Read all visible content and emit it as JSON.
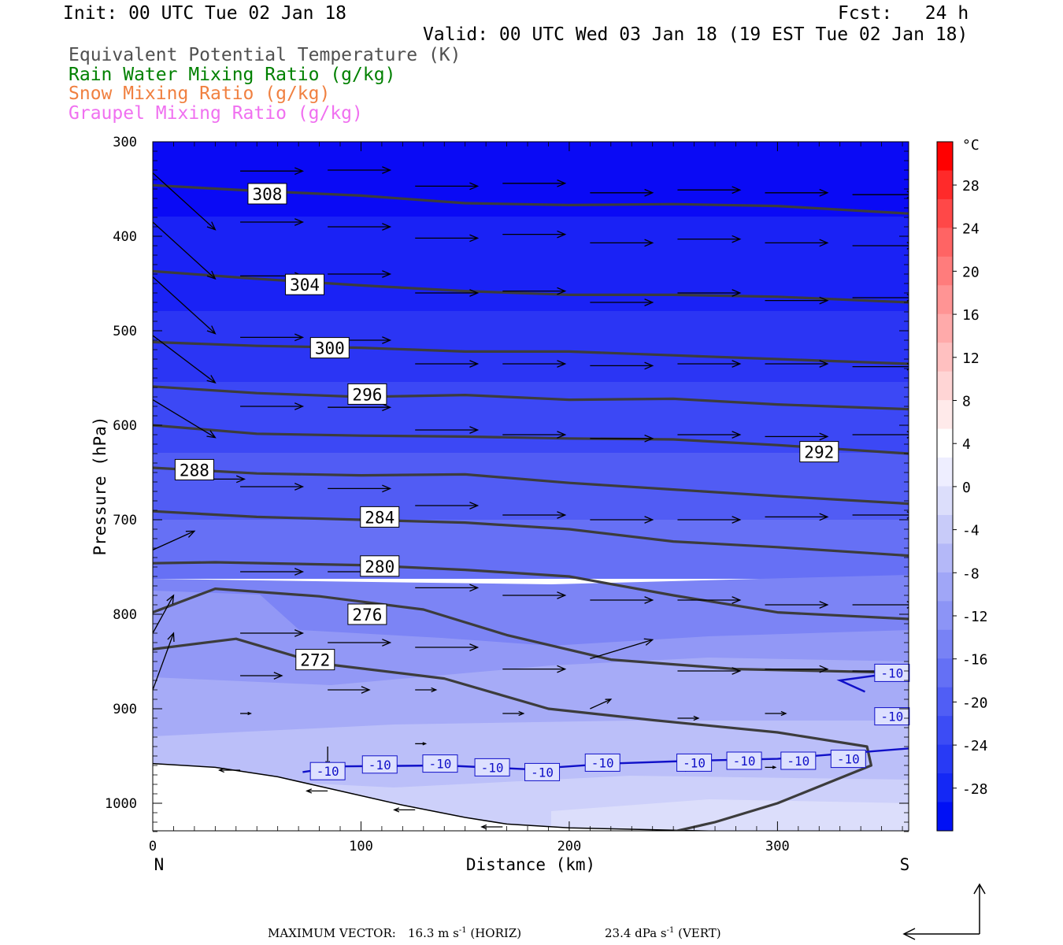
{
  "header": {
    "init": "Init: 00 UTC Tue 02 Jan 18",
    "fcst": "Fcst:   24 h",
    "valid": "Valid: 00 UTC Wed 03 Jan 18 (19 EST Tue 02 Jan 18)"
  },
  "legend": [
    {
      "text": "Equivalent Potential Temperature (K)",
      "color": "#505050"
    },
    {
      "text": "Rain Water Mixing Ratio (g/kg)",
      "color": "#008000"
    },
    {
      "text": "Snow Mixing Ratio (g/kg)",
      "color": "#f08040"
    },
    {
      "text": "Graupel Mixing Ratio (g/kg)",
      "color": "#f070f0"
    }
  ],
  "footer": {
    "label": "MAXIMUM VECTOR:",
    "horiz_value": "16.3 m s",
    "horiz_exp": "-1",
    "horiz_unit": " (HORIZ)",
    "vert_value": "23.4 dPa s",
    "vert_exp": "-1",
    "vert_unit": " (VERT)"
  },
  "colorbar": {
    "unit": "°C",
    "labels": [
      "28",
      "24",
      "20",
      "16",
      "12",
      "8",
      "4",
      "0",
      "-4",
      "-8",
      "-12",
      "-16",
      "-20",
      "-24",
      "-28"
    ]
  },
  "chart_data": {
    "type": "cross-section",
    "xlabel": "Distance (km)",
    "ylabel": "Pressure (hPa)",
    "x_range": [
      0,
      363
    ],
    "y_range": [
      300,
      1030
    ],
    "y_log": false,
    "x_ticks": [
      "0",
      "100",
      "200",
      "300"
    ],
    "x_tick_values": [
      0,
      100,
      200,
      300
    ],
    "y_ticks": [
      "300",
      "400",
      "500",
      "600",
      "700",
      "800",
      "900",
      "1000"
    ],
    "y_tick_values": [
      300,
      400,
      500,
      600,
      700,
      800,
      900,
      1000
    ],
    "x_end_labels": {
      "left": "N",
      "right": "S"
    },
    "theta_e_contours": [
      {
        "label": "308",
        "points": [
          [
            0,
            346
          ],
          [
            50,
            352
          ],
          [
            100,
            357
          ],
          [
            150,
            365
          ],
          [
            200,
            367
          ],
          [
            250,
            366
          ],
          [
            300,
            368
          ],
          [
            363,
            376
          ]
        ],
        "label_at": [
          55,
          355
        ]
      },
      {
        "label": "304",
        "points": [
          [
            0,
            437
          ],
          [
            50,
            445
          ],
          [
            100,
            452
          ],
          [
            150,
            458
          ],
          [
            200,
            462
          ],
          [
            250,
            462
          ],
          [
            300,
            464
          ],
          [
            363,
            470
          ]
        ],
        "label_at": [
          73,
          451
        ]
      },
      {
        "label": "300",
        "points": [
          [
            0,
            512
          ],
          [
            50,
            516
          ],
          [
            100,
            518
          ],
          [
            150,
            522
          ],
          [
            200,
            522
          ],
          [
            250,
            526
          ],
          [
            300,
            530
          ],
          [
            363,
            535
          ]
        ],
        "label_at": [
          85,
          518
        ]
      },
      {
        "label": "296",
        "points": [
          [
            0,
            559
          ],
          [
            50,
            566
          ],
          [
            100,
            570
          ],
          [
            150,
            568
          ],
          [
            200,
            573
          ],
          [
            250,
            572
          ],
          [
            300,
            578
          ],
          [
            363,
            583
          ]
        ],
        "label_at": [
          103,
          567
        ]
      },
      {
        "label": "292",
        "points": [
          [
            0,
            600
          ],
          [
            50,
            609
          ],
          [
            100,
            611
          ],
          [
            150,
            612
          ],
          [
            200,
            614
          ],
          [
            250,
            615
          ],
          [
            300,
            621
          ],
          [
            363,
            630
          ]
        ],
        "label_at": [
          320,
          628
        ]
      },
      {
        "label": "288",
        "points": [
          [
            0,
            645
          ],
          [
            50,
            651
          ],
          [
            100,
            653
          ],
          [
            150,
            652
          ],
          [
            200,
            661
          ],
          [
            250,
            668
          ],
          [
            300,
            675
          ],
          [
            363,
            683
          ]
        ],
        "label_at": [
          20,
          647
        ]
      },
      {
        "label": "284",
        "points": [
          [
            0,
            691
          ],
          [
            50,
            697
          ],
          [
            100,
            700
          ],
          [
            150,
            703
          ],
          [
            200,
            710
          ],
          [
            250,
            723
          ],
          [
            300,
            729
          ],
          [
            363,
            738
          ]
        ],
        "label_at": [
          109,
          697
        ]
      },
      {
        "label": "280",
        "points": [
          [
            0,
            746
          ],
          [
            30,
            745
          ],
          [
            100,
            748
          ],
          [
            150,
            753
          ],
          [
            200,
            760
          ],
          [
            250,
            780
          ],
          [
            300,
            798
          ],
          [
            363,
            805
          ]
        ],
        "label_at": [
          109,
          749
        ]
      },
      {
        "label": "276",
        "points": [
          [
            0,
            798
          ],
          [
            30,
            773
          ],
          [
            80,
            781
          ],
          [
            130,
            795
          ],
          [
            170,
            822
          ],
          [
            220,
            848
          ],
          [
            280,
            858
          ],
          [
            363,
            862
          ]
        ],
        "label_at": [
          103,
          800
        ]
      },
      {
        "label": "272",
        "points": [
          [
            0,
            837
          ],
          [
            40,
            826
          ],
          [
            80,
            852
          ],
          [
            140,
            868
          ],
          [
            190,
            900
          ],
          [
            240,
            912
          ],
          [
            300,
            925
          ],
          [
            343,
            940
          ],
          [
            345,
            960
          ],
          [
            300,
            1000
          ],
          [
            270,
            1020
          ],
          [
            250,
            1030
          ]
        ],
        "label_at": [
          78,
          848
        ]
      }
    ],
    "temp_contours": [
      {
        "label": "-10",
        "points": [
          [
            72,
            967
          ],
          [
            90,
            961
          ],
          [
            140,
            960
          ],
          [
            180,
            964
          ],
          [
            220,
            958
          ],
          [
            260,
            955
          ],
          [
            300,
            953
          ],
          [
            363,
            942
          ]
        ],
        "label_at": [
          [
            84,
            966
          ],
          [
            109,
            959
          ],
          [
            138,
            958
          ],
          [
            163,
            962
          ],
          [
            187,
            967
          ],
          [
            216,
            957
          ],
          [
            260,
            957
          ],
          [
            284,
            955
          ],
          [
            310,
            955
          ],
          [
            334,
            953
          ]
        ]
      },
      {
        "label": "-10",
        "points": [
          [
            342,
            882
          ],
          [
            330,
            870
          ],
          [
            363,
            860
          ]
        ],
        "label_at": [
          [
            355,
            862
          ],
          [
            355,
            908
          ]
        ]
      }
    ],
    "wind_vectors": [
      {
        "x": 0,
        "p": 333,
        "u": 30,
        "w": 60
      },
      {
        "x": 42,
        "p": 331,
        "u": 30,
        "w": 0
      },
      {
        "x": 84,
        "p": 330,
        "u": 30,
        "w": 0
      },
      {
        "x": 126,
        "p": 347,
        "u": 30,
        "w": 0
      },
      {
        "x": 168,
        "p": 344,
        "u": 30,
        "w": 0
      },
      {
        "x": 210,
        "p": 354,
        "u": 30,
        "w": 0
      },
      {
        "x": 252,
        "p": 351,
        "u": 30,
        "w": 0
      },
      {
        "x": 294,
        "p": 354,
        "u": 30,
        "w": 0
      },
      {
        "x": 336,
        "p": 356,
        "u": 30,
        "w": 0
      },
      {
        "x": 0,
        "p": 385,
        "u": 30,
        "w": 60
      },
      {
        "x": 42,
        "p": 385,
        "u": 30,
        "w": 0
      },
      {
        "x": 84,
        "p": 390,
        "u": 30,
        "w": 0
      },
      {
        "x": 126,
        "p": 402,
        "u": 30,
        "w": 0
      },
      {
        "x": 168,
        "p": 398,
        "u": 30,
        "w": 0
      },
      {
        "x": 210,
        "p": 407,
        "u": 30,
        "w": 0
      },
      {
        "x": 252,
        "p": 403,
        "u": 30,
        "w": 0
      },
      {
        "x": 294,
        "p": 407,
        "u": 30,
        "w": 0
      },
      {
        "x": 336,
        "p": 410,
        "u": 30,
        "w": 0
      },
      {
        "x": 0,
        "p": 443,
        "u": 30,
        "w": 60
      },
      {
        "x": 42,
        "p": 442,
        "u": 30,
        "w": 0
      },
      {
        "x": 84,
        "p": 440,
        "u": 30,
        "w": 0
      },
      {
        "x": 126,
        "p": 460,
        "u": 30,
        "w": 0
      },
      {
        "x": 168,
        "p": 458,
        "u": 30,
        "w": 0
      },
      {
        "x": 210,
        "p": 470,
        "u": 30,
        "w": 0
      },
      {
        "x": 252,
        "p": 460,
        "u": 30,
        "w": 0
      },
      {
        "x": 294,
        "p": 468,
        "u": 30,
        "w": 0
      },
      {
        "x": 336,
        "p": 465,
        "u": 30,
        "w": 0
      },
      {
        "x": 0,
        "p": 505,
        "u": 30,
        "w": 50
      },
      {
        "x": 42,
        "p": 507,
        "u": 30,
        "w": 0
      },
      {
        "x": 84,
        "p": 510,
        "u": 30,
        "w": 0
      },
      {
        "x": 126,
        "p": 535,
        "u": 30,
        "w": 0
      },
      {
        "x": 168,
        "p": 535,
        "u": 30,
        "w": 0
      },
      {
        "x": 210,
        "p": 537,
        "u": 30,
        "w": 0
      },
      {
        "x": 252,
        "p": 535,
        "u": 30,
        "w": 0
      },
      {
        "x": 294,
        "p": 535,
        "u": 30,
        "w": 0
      },
      {
        "x": 336,
        "p": 538,
        "u": 30,
        "w": 0
      },
      {
        "x": 0,
        "p": 573,
        "u": 30,
        "w": 40
      },
      {
        "x": 42,
        "p": 580,
        "u": 30,
        "w": 0
      },
      {
        "x": 84,
        "p": 581,
        "u": 30,
        "w": 0
      },
      {
        "x": 126,
        "p": 605,
        "u": 30,
        "w": 0
      },
      {
        "x": 168,
        "p": 610,
        "u": 30,
        "w": 0
      },
      {
        "x": 210,
        "p": 614,
        "u": 30,
        "w": 0
      },
      {
        "x": 252,
        "p": 610,
        "u": 30,
        "w": 0
      },
      {
        "x": 294,
        "p": 612,
        "u": 30,
        "w": 0
      },
      {
        "x": 336,
        "p": 610,
        "u": 30,
        "w": 0
      },
      {
        "x": 14,
        "p": 657,
        "u": 30,
        "w": 0
      },
      {
        "x": 42,
        "p": 665,
        "u": 30,
        "w": 0
      },
      {
        "x": 84,
        "p": 667,
        "u": 30,
        "w": 0
      },
      {
        "x": 126,
        "p": 685,
        "u": 30,
        "w": 0
      },
      {
        "x": 168,
        "p": 695,
        "u": 30,
        "w": 0
      },
      {
        "x": 210,
        "p": 700,
        "u": 30,
        "w": 0
      },
      {
        "x": 252,
        "p": 700,
        "u": 30,
        "w": 0
      },
      {
        "x": 294,
        "p": 697,
        "u": 30,
        "w": 0
      },
      {
        "x": 336,
        "p": 695,
        "u": 30,
        "w": 0
      },
      {
        "x": 0,
        "p": 732,
        "u": 20,
        "w": -20
      },
      {
        "x": 42,
        "p": 755,
        "u": 30,
        "w": 0
      },
      {
        "x": 84,
        "p": 755,
        "u": 30,
        "w": 0
      },
      {
        "x": 126,
        "p": 772,
        "u": 30,
        "w": 0
      },
      {
        "x": 168,
        "p": 780,
        "u": 30,
        "w": 0
      },
      {
        "x": 210,
        "p": 785,
        "u": 30,
        "w": 0
      },
      {
        "x": 252,
        "p": 785,
        "u": 30,
        "w": 0
      },
      {
        "x": 294,
        "p": 790,
        "u": 30,
        "w": 0
      },
      {
        "x": 336,
        "p": 790,
        "u": 30,
        "w": 0
      },
      {
        "x": 0,
        "p": 820,
        "u": 10,
        "w": -40
      },
      {
        "x": 42,
        "p": 820,
        "u": 30,
        "w": 0
      },
      {
        "x": 84,
        "p": 830,
        "u": 30,
        "w": 0
      },
      {
        "x": 126,
        "p": 835,
        "u": 30,
        "w": 0
      },
      {
        "x": 168,
        "p": 858,
        "u": 30,
        "w": 0
      },
      {
        "x": 210,
        "p": 847,
        "u": 30,
        "w": -20
      },
      {
        "x": 252,
        "p": 860,
        "u": 30,
        "w": 0
      },
      {
        "x": 294,
        "p": 858,
        "u": 30,
        "w": 0
      },
      {
        "x": 336,
        "p": 860,
        "u": 30,
        "w": 0
      },
      {
        "x": 0,
        "p": 880,
        "u": 10,
        "w": -60
      },
      {
        "x": 42,
        "p": 865,
        "u": 20,
        "w": 0
      },
      {
        "x": 84,
        "p": 880,
        "u": 20,
        "w": 0
      },
      {
        "x": 126,
        "p": 880,
        "u": 10,
        "w": 0
      },
      {
        "x": 168,
        "p": 905,
        "u": 10,
        "w": 0
      },
      {
        "x": 210,
        "p": 900,
        "u": 10,
        "w": -10
      },
      {
        "x": 252,
        "p": 910,
        "u": 10,
        "w": 0
      },
      {
        "x": 294,
        "p": 905,
        "u": 10,
        "w": 0
      },
      {
        "x": 42,
        "p": 905,
        "u": 5,
        "w": 0
      },
      {
        "x": 84,
        "p": 940,
        "u": 0,
        "w": 20
      },
      {
        "x": 126,
        "p": 937,
        "u": 5,
        "w": 0
      },
      {
        "x": 252,
        "p": 965,
        "u": 5,
        "w": 0
      },
      {
        "x": 294,
        "p": 962,
        "u": 5,
        "w": 0
      },
      {
        "x": 42,
        "p": 965,
        "u": -10,
        "w": 0
      },
      {
        "x": 84,
        "p": 987,
        "u": -10,
        "w": 0
      },
      {
        "x": 126,
        "p": 1007,
        "u": -10,
        "w": 0
      },
      {
        "x": 168,
        "p": 1025,
        "u": -10,
        "w": 0
      }
    ],
    "terrain": [
      [
        0,
        958
      ],
      [
        30,
        962
      ],
      [
        60,
        972
      ],
      [
        90,
        987
      ],
      [
        120,
        1002
      ],
      [
        150,
        1015
      ],
      [
        170,
        1022
      ],
      [
        200,
        1026
      ],
      [
        240,
        1028
      ],
      [
        280,
        1030
      ],
      [
        363,
        1030
      ]
    ]
  }
}
